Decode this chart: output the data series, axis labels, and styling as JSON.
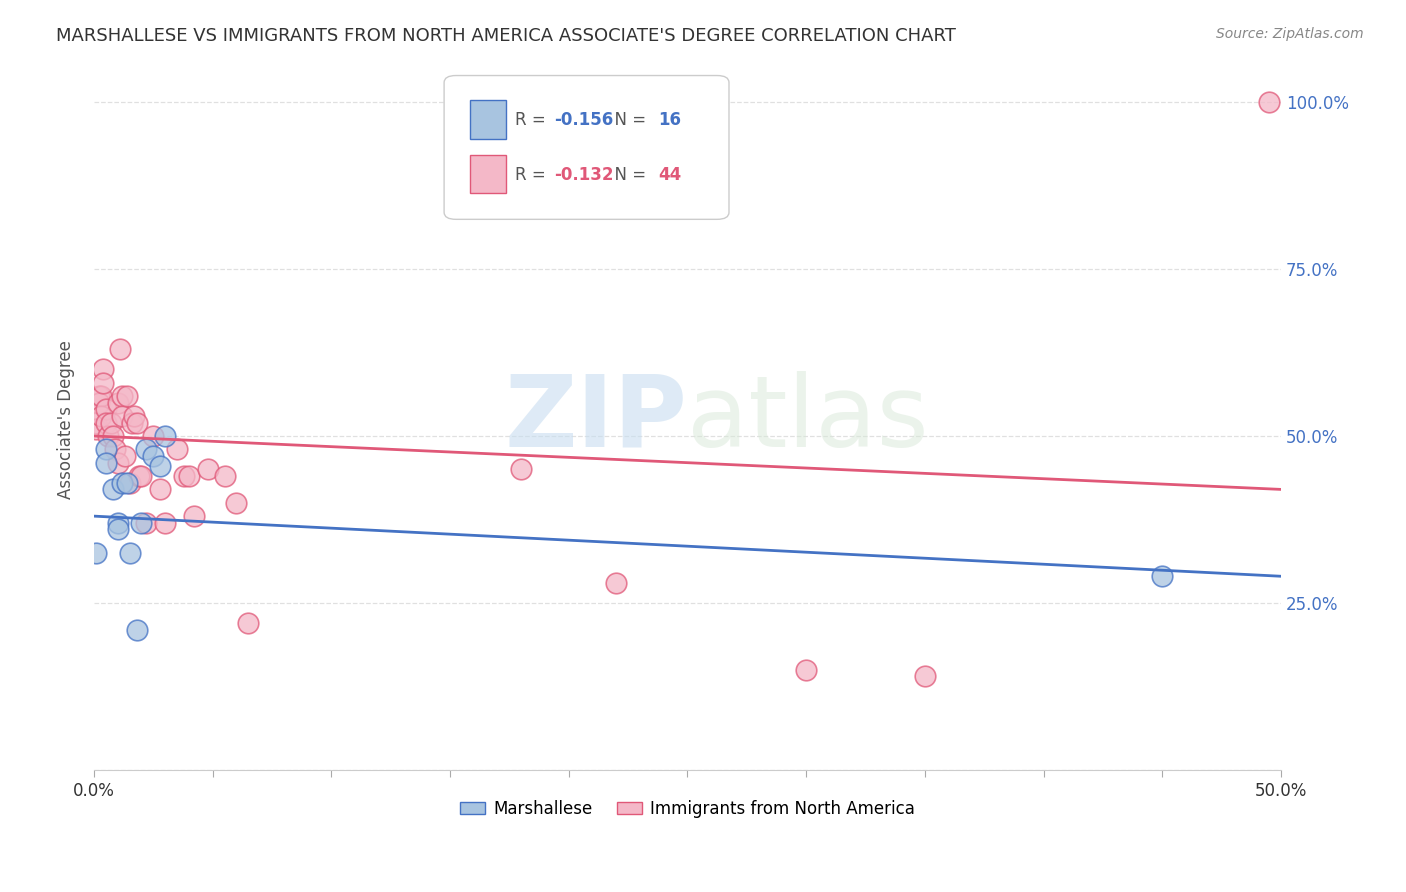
{
  "title": "MARSHALLESE VS IMMIGRANTS FROM NORTH AMERICA ASSOCIATE'S DEGREE CORRELATION CHART",
  "source": "Source: ZipAtlas.com",
  "ylabel": "Associate's Degree",
  "legend1_label": "Marshallese",
  "legend2_label": "Immigrants from North America",
  "r1": -0.156,
  "n1": 16,
  "r2": -0.132,
  "n2": 44,
  "blue_color": "#a8c4e0",
  "pink_color": "#f4b8c8",
  "blue_line_color": "#4472C4",
  "pink_line_color": "#e05878",
  "blue_trend": [
    0.38,
    0.29
  ],
  "pink_trend": [
    0.5,
    0.42
  ],
  "marshallese_x": [
    0.001,
    0.005,
    0.005,
    0.008,
    0.01,
    0.01,
    0.012,
    0.014,
    0.015,
    0.018,
    0.02,
    0.022,
    0.025,
    0.028,
    0.03,
    0.45
  ],
  "marshallese_y": [
    0.325,
    0.48,
    0.46,
    0.42,
    0.37,
    0.36,
    0.43,
    0.43,
    0.325,
    0.21,
    0.37,
    0.48,
    0.47,
    0.455,
    0.5,
    0.29
  ],
  "immigrants_x": [
    0.001,
    0.001,
    0.002,
    0.002,
    0.003,
    0.003,
    0.004,
    0.004,
    0.005,
    0.005,
    0.006,
    0.007,
    0.008,
    0.009,
    0.01,
    0.01,
    0.011,
    0.012,
    0.012,
    0.013,
    0.014,
    0.015,
    0.016,
    0.017,
    0.018,
    0.019,
    0.02,
    0.022,
    0.025,
    0.028,
    0.03,
    0.035,
    0.038,
    0.04,
    0.042,
    0.048,
    0.055,
    0.06,
    0.065,
    0.18,
    0.22,
    0.3,
    0.35,
    0.495
  ],
  "immigrants_y": [
    0.52,
    0.51,
    0.56,
    0.55,
    0.56,
    0.53,
    0.6,
    0.58,
    0.54,
    0.52,
    0.5,
    0.52,
    0.5,
    0.48,
    0.55,
    0.46,
    0.63,
    0.56,
    0.53,
    0.47,
    0.56,
    0.43,
    0.52,
    0.53,
    0.52,
    0.44,
    0.44,
    0.37,
    0.5,
    0.42,
    0.37,
    0.48,
    0.44,
    0.44,
    0.38,
    0.45,
    0.44,
    0.4,
    0.22,
    0.45,
    0.28,
    0.15,
    0.14,
    1.0
  ],
  "xlim": [
    0.0,
    0.5
  ],
  "ylim": [
    0.0,
    1.05
  ],
  "watermark_zip": "ZIP",
  "watermark_atlas": "atlas",
  "background_color": "#ffffff",
  "grid_color": "#e0e0e0"
}
